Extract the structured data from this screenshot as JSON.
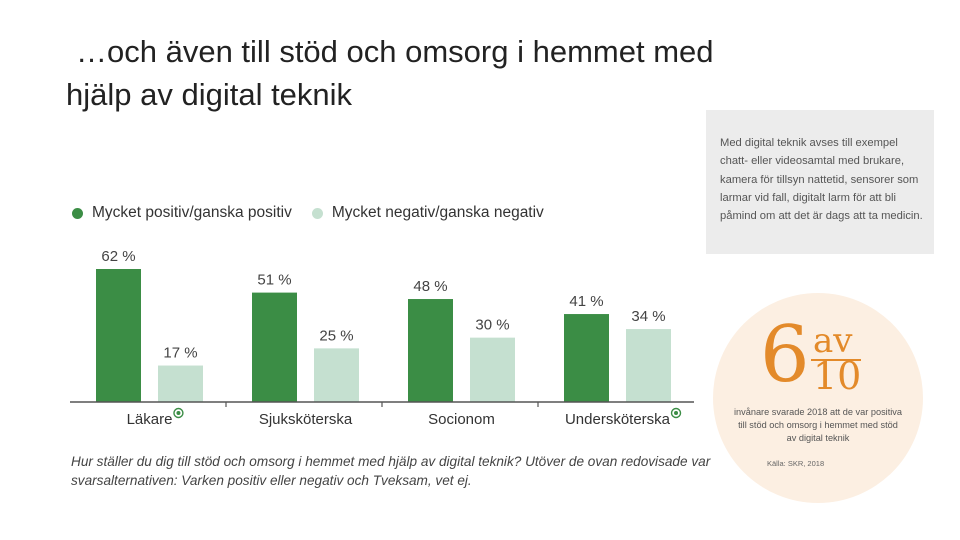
{
  "title": {
    "line1": "…och även till stöd och omsorg i hemmet med",
    "line2": "hjälp av digital teknik"
  },
  "info_box": {
    "text": "Med digital teknik avses till exempel chatt- eller videosamtal med brukare, kamera för tillsyn nattetid, sensorer som larmar vid fall, digitalt larm för att bli påmind om att det är dags att ta medicin."
  },
  "colors": {
    "positive": "#3b8d45",
    "negative": "#c5e0d0",
    "accent": "#e38a2a"
  },
  "chart_data": {
    "type": "bar",
    "categories": [
      "Läkare",
      "Sjuksköterska",
      "Socionom",
      "Undersköterska"
    ],
    "series": [
      {
        "name": "Mycket positiv/ganska positiv",
        "values": [
          62,
          51,
          48,
          41
        ]
      },
      {
        "name": "Mycket negativ/ganska negativ",
        "values": [
          17,
          25,
          30,
          34
        ]
      }
    ],
    "unit_suffix": " %",
    "ylim": [
      0,
      62
    ],
    "grid": false,
    "legend_position": "top-left",
    "title": "",
    "xlabel": "",
    "ylabel": "",
    "marked_categories": [
      "Läkare",
      "Undersköterska"
    ]
  },
  "caption": "Hur ställer du dig till stöd och omsorg i hemmet med hjälp av digital teknik? Utöver de ovan redovisade var svarsalternativen: Varken positiv eller negativ och Tveksam, vet ej.",
  "stat": {
    "big_number": "6",
    "av": "av",
    "denominator": "10",
    "text": "invånare svarade 2018 att de var positiva till stöd och omsorg i hemmet med stöd av digital teknik",
    "source": "Källa: SKR, 2018"
  }
}
